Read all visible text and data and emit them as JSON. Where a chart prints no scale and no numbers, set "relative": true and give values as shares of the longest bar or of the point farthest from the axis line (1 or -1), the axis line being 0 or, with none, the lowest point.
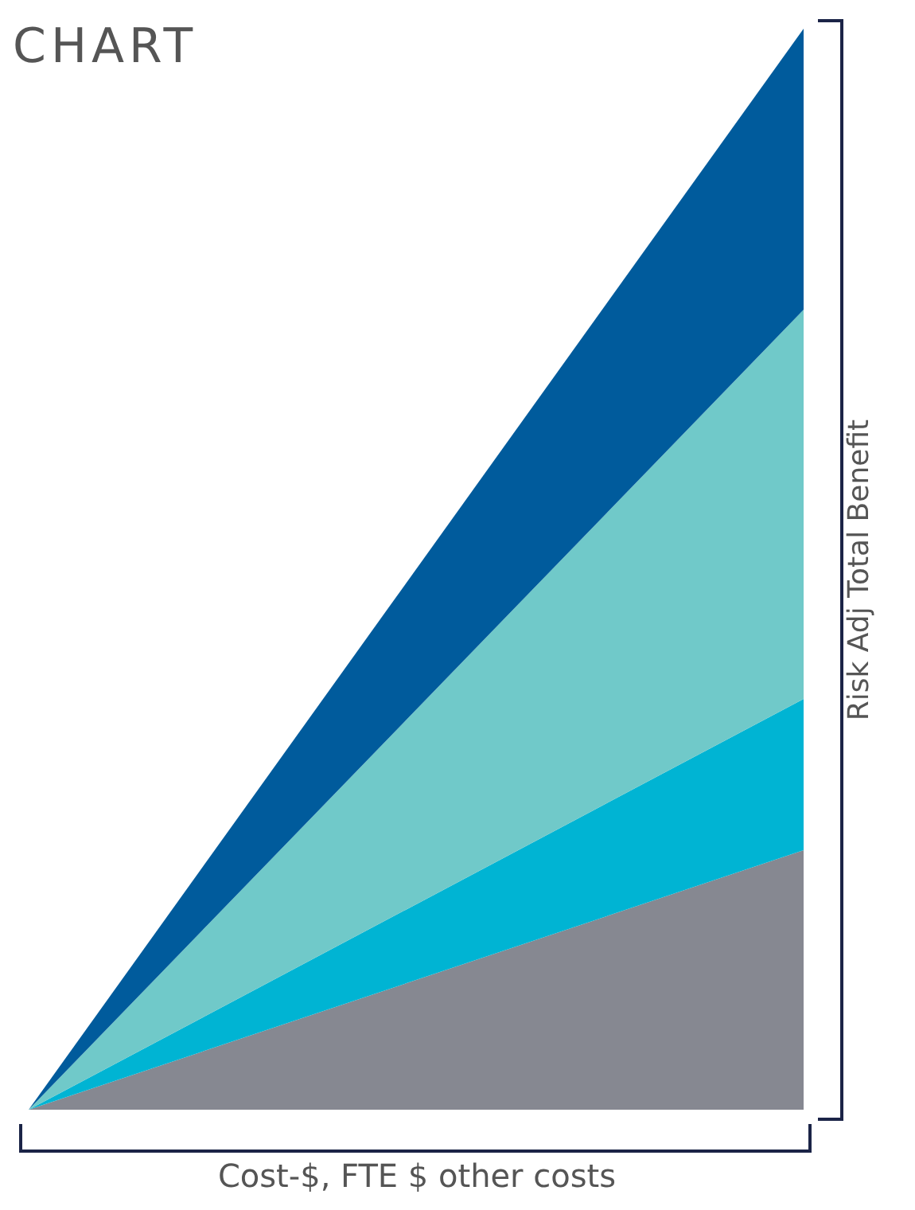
{
  "chart_data": {
    "type": "area",
    "title": "CHART",
    "xlabel": "Cost-$, FTE $ other costs",
    "ylabel": "Risk Adj Total Benefit",
    "categories": [
      null,
      null
    ],
    "relative": true,
    "stacked": true,
    "series": [
      {
        "color": "#868891",
        "values": [
          0,
          0.24
        ]
      },
      {
        "color": "#00b4d3",
        "values": [
          0,
          0.14
        ]
      },
      {
        "color": "#70c9c9",
        "values": [
          0,
          0.36
        ]
      },
      {
        "color": "#005b9c",
        "values": [
          0,
          0.26
        ]
      }
    ]
  }
}
